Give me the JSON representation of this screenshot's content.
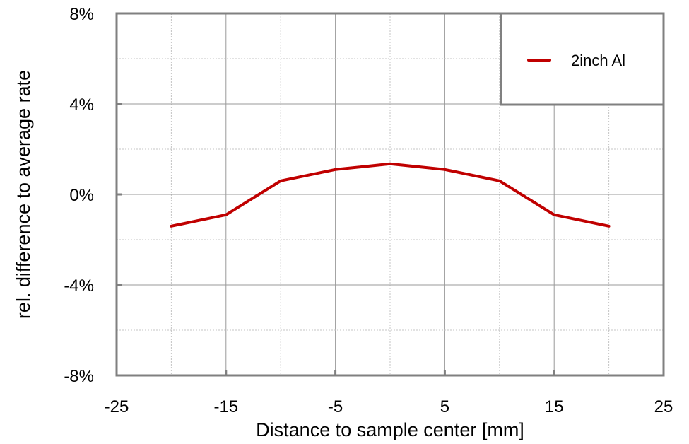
{
  "chart_data": {
    "type": "line",
    "title": "",
    "xlabel": "Distance to sample center [mm]",
    "ylabel": "rel. difference to average rate",
    "xlim": [
      -25,
      25
    ],
    "ylim": [
      -8,
      8
    ],
    "x_ticks": [
      -25,
      -15,
      -5,
      5,
      15,
      25
    ],
    "x_tick_labels": [
      "-25",
      "-15",
      "-5",
      "5",
      "15",
      "25"
    ],
    "y_ticks": [
      -8,
      -4,
      0,
      4,
      8
    ],
    "y_tick_labels": [
      "-8%",
      "-4%",
      "0%",
      "4%",
      "8%"
    ],
    "grid": true,
    "legend_position": "top-right",
    "series": [
      {
        "name": "2inch Al",
        "color": "#c00000",
        "x": [
          -20,
          -15,
          -10,
          -5,
          0,
          5,
          10,
          15,
          20
        ],
        "y": [
          -1.4,
          -0.9,
          0.6,
          1.1,
          1.35,
          1.1,
          0.6,
          -0.9,
          -1.4
        ]
      }
    ]
  }
}
